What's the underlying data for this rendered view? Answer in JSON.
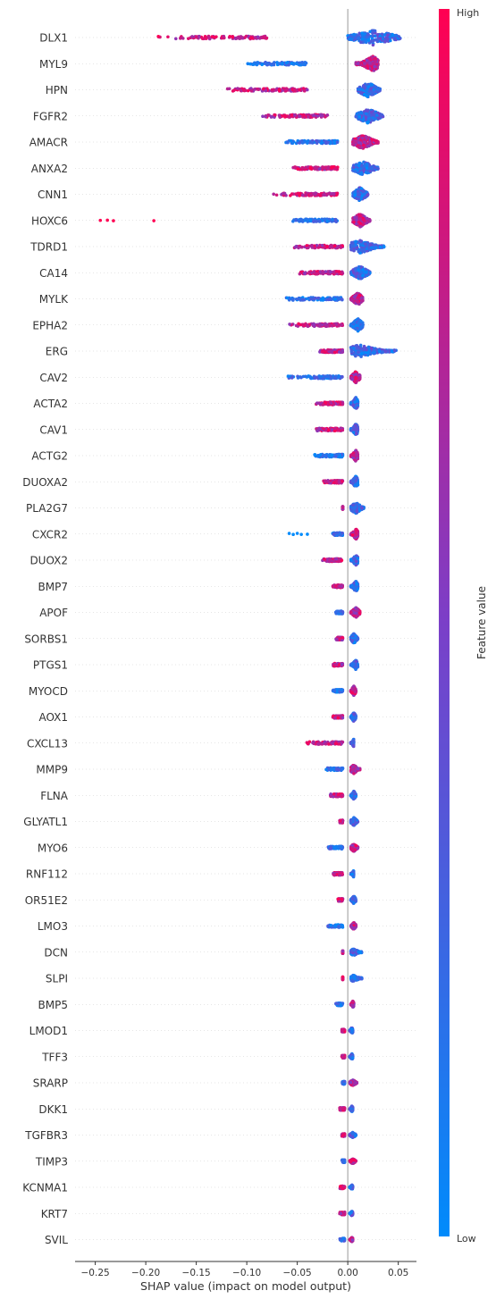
{
  "chart_data": {
    "type": "scatter",
    "title": "",
    "xlabel": "SHAP value (impact on model output)",
    "ylabel": "",
    "xlim": [
      -0.27,
      0.068
    ],
    "xticks": [
      -0.25,
      -0.2,
      -0.15,
      -0.1,
      -0.05,
      0.0,
      0.05
    ],
    "xtick_labels": [
      "−0.25",
      "−0.20",
      "−0.15",
      "−0.10",
      "−0.05",
      "0.00",
      "0.05"
    ],
    "colorbar": {
      "label": "Feature value",
      "high_label": "High",
      "low_label": "Low",
      "low_color": "#008bfb",
      "mid_color": "#7b3fc8",
      "high_color": "#ff0052"
    },
    "features": [
      {
        "name": "DLX1",
        "neg": [
          -0.19,
          -0.08,
          -0.13,
          -0.03
        ],
        "pos": [
          0.0,
          0.025,
          0.052,
          0.03
        ]
      },
      {
        "name": "MYL9",
        "neg": [
          -0.1,
          -0.04,
          -0.07,
          -0.015
        ],
        "pos": [
          0.008,
          0.025,
          0.03,
          0.02
        ]
      },
      {
        "name": "HPN",
        "neg": [
          -0.12,
          -0.04,
          -0.08,
          -0.005
        ],
        "pos": [
          0.01,
          0.02,
          0.032,
          0.015
        ]
      },
      {
        "name": "FGFR2",
        "neg": [
          -0.085,
          -0.02,
          -0.06,
          -0.01
        ],
        "pos": [
          0.008,
          0.02,
          0.035,
          0.015
        ]
      },
      {
        "name": "AMACR",
        "neg": [
          -0.062,
          -0.01,
          -0.05,
          -0.005
        ],
        "pos": [
          0.005,
          0.015,
          0.03,
          0.015
        ]
      },
      {
        "name": "ANXA2",
        "neg": [
          -0.055,
          -0.01,
          -0.04,
          -0.005
        ],
        "pos": [
          0.005,
          0.015,
          0.03,
          0.015
        ]
      },
      {
        "name": "CNN1",
        "neg": [
          -0.075,
          -0.01,
          -0.05,
          -0.005
        ],
        "pos": [
          0.005,
          0.012,
          0.02,
          0.015
        ]
      },
      {
        "name": "HOXC6",
        "neg": [
          -0.055,
          -0.01,
          -0.04,
          -0.005
        ],
        "pos": [
          0.005,
          0.012,
          0.022,
          0.015
        ],
        "outliers": [
          -0.245,
          -0.238,
          -0.232,
          -0.192
        ]
      },
      {
        "name": "TDRD1",
        "neg": [
          -0.055,
          -0.005,
          -0.04,
          -0.005
        ],
        "pos": [
          0.003,
          0.012,
          0.036,
          0.015
        ]
      },
      {
        "name": "CA14",
        "neg": [
          -0.048,
          -0.005,
          -0.03,
          -0.005
        ],
        "pos": [
          0.003,
          0.012,
          0.022,
          0.015
        ]
      },
      {
        "name": "MYLK",
        "neg": [
          -0.062,
          -0.005,
          -0.05,
          -0.005
        ],
        "pos": [
          0.003,
          0.01,
          0.015,
          0.015
        ]
      },
      {
        "name": "EPHA2",
        "neg": [
          -0.058,
          -0.005,
          -0.04,
          -0.005
        ],
        "pos": [
          0.003,
          0.01,
          0.015,
          0.015
        ]
      },
      {
        "name": "ERG",
        "neg": [
          -0.028,
          -0.005,
          -0.02,
          -0.005
        ],
        "pos": [
          0.003,
          0.012,
          0.048,
          0.015
        ]
      },
      {
        "name": "CAV2",
        "neg": [
          -0.062,
          -0.005,
          -0.05,
          -0.005
        ],
        "pos": [
          0.003,
          0.008,
          0.012,
          0.015
        ]
      },
      {
        "name": "ACTA2",
        "neg": [
          -0.032,
          -0.005,
          -0.02,
          -0.005
        ],
        "pos": [
          0.003,
          0.008,
          0.01,
          0.015
        ]
      },
      {
        "name": "CAV1",
        "neg": [
          -0.032,
          -0.005,
          -0.02,
          -0.005
        ],
        "pos": [
          0.003,
          0.008,
          0.01,
          0.015
        ]
      },
      {
        "name": "ACTG2",
        "neg": [
          -0.035,
          -0.005,
          -0.025,
          -0.005
        ],
        "pos": [
          0.003,
          0.008,
          0.01,
          0.015
        ]
      },
      {
        "name": "DUOXA2",
        "neg": [
          -0.025,
          -0.005,
          -0.02,
          -0.005
        ],
        "pos": [
          0.003,
          0.008,
          0.01,
          0.015
        ]
      },
      {
        "name": "PLA2G7",
        "neg": [
          -0.005,
          -0.005,
          -0.005,
          -0.005
        ],
        "pos": [
          0.003,
          0.008,
          0.016,
          0.015
        ]
      },
      {
        "name": "CXCR2",
        "neg": [
          -0.015,
          -0.005,
          -0.01,
          -0.005
        ],
        "pos": [
          0.003,
          0.008,
          0.01,
          0.015
        ],
        "outliers": [
          -0.058,
          -0.054,
          -0.05,
          -0.046,
          -0.04
        ]
      },
      {
        "name": "DUOX2",
        "neg": [
          -0.025,
          -0.005,
          -0.02,
          -0.005
        ],
        "pos": [
          0.003,
          0.008,
          0.01,
          0.015
        ]
      },
      {
        "name": "BMP7",
        "neg": [
          -0.015,
          -0.005,
          -0.012,
          -0.005
        ],
        "pos": [
          0.003,
          0.008,
          0.01,
          0.015
        ]
      },
      {
        "name": "APOF",
        "neg": [
          -0.012,
          -0.005,
          -0.01,
          -0.005
        ],
        "pos": [
          0.003,
          0.008,
          0.012,
          0.015
        ]
      },
      {
        "name": "SORBS1",
        "neg": [
          -0.012,
          -0.005,
          -0.01,
          -0.005
        ],
        "pos": [
          0.003,
          0.006,
          0.01,
          0.015
        ]
      },
      {
        "name": "PTGS1",
        "neg": [
          -0.015,
          -0.005,
          -0.012,
          -0.005
        ],
        "pos": [
          0.003,
          0.008,
          0.01,
          0.015
        ]
      },
      {
        "name": "MYOCD",
        "neg": [
          -0.015,
          -0.005,
          -0.012,
          -0.005
        ],
        "pos": [
          0.003,
          0.006,
          0.008,
          0.015
        ]
      },
      {
        "name": "AOX1",
        "neg": [
          -0.015,
          -0.005,
          -0.012,
          -0.005
        ],
        "pos": [
          0.003,
          0.006,
          0.008,
          0.015
        ]
      },
      {
        "name": "CXCL13",
        "neg": [
          -0.042,
          -0.005,
          -0.03,
          -0.005
        ],
        "pos": [
          0.003,
          0.006,
          0.006,
          0.015
        ]
      },
      {
        "name": "MMP9",
        "neg": [
          -0.022,
          -0.005,
          -0.015,
          -0.005
        ],
        "pos": [
          0.003,
          0.006,
          0.012,
          0.015
        ]
      },
      {
        "name": "FLNA",
        "neg": [
          -0.018,
          -0.005,
          -0.015,
          -0.005
        ],
        "pos": [
          0.003,
          0.006,
          0.008,
          0.015
        ]
      },
      {
        "name": "GLYATL1",
        "neg": [
          -0.008,
          -0.005,
          -0.006,
          -0.005
        ],
        "pos": [
          0.003,
          0.006,
          0.01,
          0.015
        ]
      },
      {
        "name": "MYO6",
        "neg": [
          -0.02,
          -0.005,
          -0.015,
          -0.005
        ],
        "pos": [
          0.003,
          0.006,
          0.01,
          0.015
        ]
      },
      {
        "name": "RNF112",
        "neg": [
          -0.015,
          -0.005,
          -0.012,
          -0.005
        ],
        "pos": [
          0.003,
          0.006,
          0.006,
          0.015
        ]
      },
      {
        "name": "OR51E2",
        "neg": [
          -0.01,
          -0.005,
          -0.008,
          -0.005
        ],
        "pos": [
          0.003,
          0.006,
          0.008,
          0.015
        ]
      },
      {
        "name": "LMO3",
        "neg": [
          -0.02,
          -0.005,
          -0.015,
          -0.005
        ],
        "pos": [
          0.003,
          0.006,
          0.008,
          0.015
        ]
      },
      {
        "name": "DCN",
        "neg": [
          -0.005,
          -0.005,
          -0.005,
          -0.005
        ],
        "pos": [
          0.003,
          0.006,
          0.014,
          0.015
        ]
      },
      {
        "name": "SLPI",
        "neg": [
          -0.005,
          -0.005,
          -0.005,
          -0.005
        ],
        "pos": [
          0.003,
          0.006,
          0.014,
          0.015
        ]
      },
      {
        "name": "BMP5",
        "neg": [
          -0.012,
          -0.005,
          -0.01,
          -0.005
        ],
        "pos": [
          0.003,
          0.005,
          0.006,
          0.015
        ]
      },
      {
        "name": "LMOD1",
        "neg": [
          -0.006,
          -0.003,
          -0.005,
          -0.005
        ],
        "pos": [
          0.002,
          0.004,
          0.005,
          0.015
        ]
      },
      {
        "name": "TFF3",
        "neg": [
          -0.006,
          -0.003,
          -0.005,
          -0.005
        ],
        "pos": [
          0.002,
          0.004,
          0.005,
          0.015
        ]
      },
      {
        "name": "SRARP",
        "neg": [
          -0.006,
          -0.003,
          -0.005,
          -0.005
        ],
        "pos": [
          0.002,
          0.005,
          0.009,
          0.015
        ]
      },
      {
        "name": "DKK1",
        "neg": [
          -0.008,
          -0.003,
          -0.006,
          -0.005
        ],
        "pos": [
          0.002,
          0.004,
          0.005,
          0.015
        ]
      },
      {
        "name": "TGFBR3",
        "neg": [
          -0.006,
          -0.003,
          -0.005,
          -0.005
        ],
        "pos": [
          0.002,
          0.005,
          0.008,
          0.015
        ]
      },
      {
        "name": "TIMP3",
        "neg": [
          -0.006,
          -0.003,
          -0.005,
          -0.005
        ],
        "pos": [
          0.002,
          0.005,
          0.008,
          0.015
        ]
      },
      {
        "name": "KCNMA1",
        "neg": [
          -0.008,
          -0.003,
          -0.006,
          -0.005
        ],
        "pos": [
          0.002,
          0.004,
          0.005,
          0.015
        ]
      },
      {
        "name": "KRT7",
        "neg": [
          -0.008,
          -0.003,
          -0.006,
          -0.005
        ],
        "pos": [
          0.002,
          0.004,
          0.005,
          0.015
        ]
      },
      {
        "name": "SVIL",
        "neg": [
          -0.008,
          -0.003,
          -0.006,
          -0.005
        ],
        "pos": [
          0.002,
          0.004,
          0.005,
          0.015
        ]
      }
    ]
  }
}
